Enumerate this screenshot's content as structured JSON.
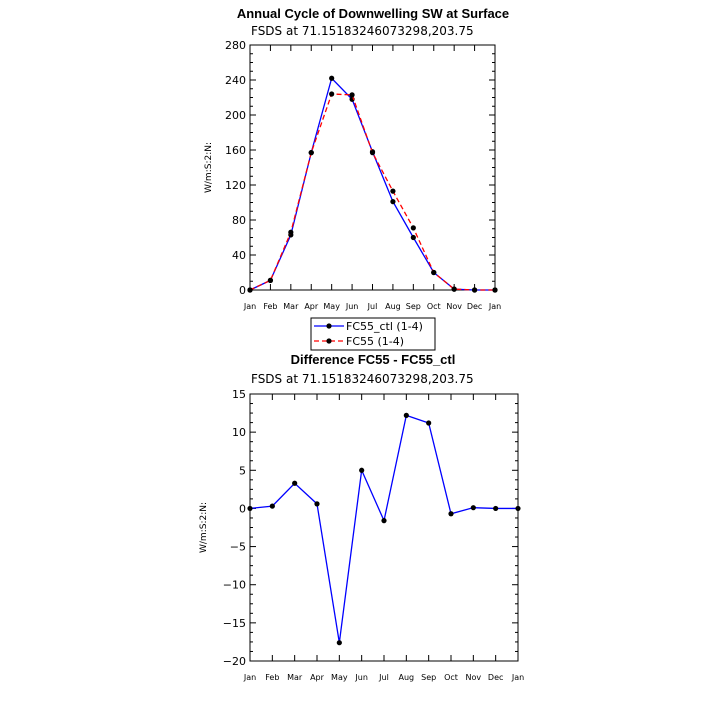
{
  "chart_data": [
    {
      "type": "line",
      "title": "Annual Cycle of Downwelling SW at Surface",
      "subtitle": "FSDS at 71.15183246073298,203.75",
      "ylabel": "W/m:S:2:N:",
      "ylim": [
        0,
        280
      ],
      "yticks": [
        0,
        40,
        80,
        120,
        160,
        200,
        240,
        280
      ],
      "categories": [
        "Jan",
        "Feb",
        "Mar",
        "Apr",
        "May",
        "Jun",
        "Jul",
        "Aug",
        "Sep",
        "Oct",
        "Nov",
        "Dec",
        "Jan"
      ],
      "series": [
        {
          "name": "FC55_ctl (1-4)",
          "color": "#0000ff",
          "dash": "solid",
          "values": [
            0,
            11,
            63,
            157,
            242,
            218,
            158,
            101,
            60,
            20,
            1,
            0,
            0
          ]
        },
        {
          "name": "FC55 (1-4)",
          "color": "#ff0000",
          "dash": "dashed",
          "values": [
            0,
            11,
            66,
            157,
            224,
            223,
            157,
            113,
            71,
            20,
            1,
            0,
            0
          ]
        }
      ],
      "legend": "below"
    },
    {
      "type": "line",
      "title": "Difference FC55 - FC55_ctl",
      "subtitle": "FSDS at 71.15183246073298,203.75",
      "ylabel": "W/m:S:2:N:",
      "ylim": [
        -20,
        15
      ],
      "yticks": [
        -20,
        -15,
        -10,
        -5,
        0,
        5,
        10,
        15
      ],
      "ytick_labels": [
        "−20",
        "−15",
        "−10",
        "−5",
        "0",
        "5",
        "10",
        "15"
      ],
      "categories": [
        "Jan",
        "Feb",
        "Mar",
        "Apr",
        "May",
        "Jun",
        "Jul",
        "Aug",
        "Sep",
        "Oct",
        "Nov",
        "Dec",
        "Jan"
      ],
      "series": [
        {
          "color": "#0000ff",
          "dash": "solid",
          "values": [
            0,
            0.3,
            3.3,
            0.6,
            -17.6,
            5.0,
            -1.6,
            12.2,
            11.2,
            -0.7,
            0.1,
            0,
            0
          ]
        }
      ]
    }
  ]
}
